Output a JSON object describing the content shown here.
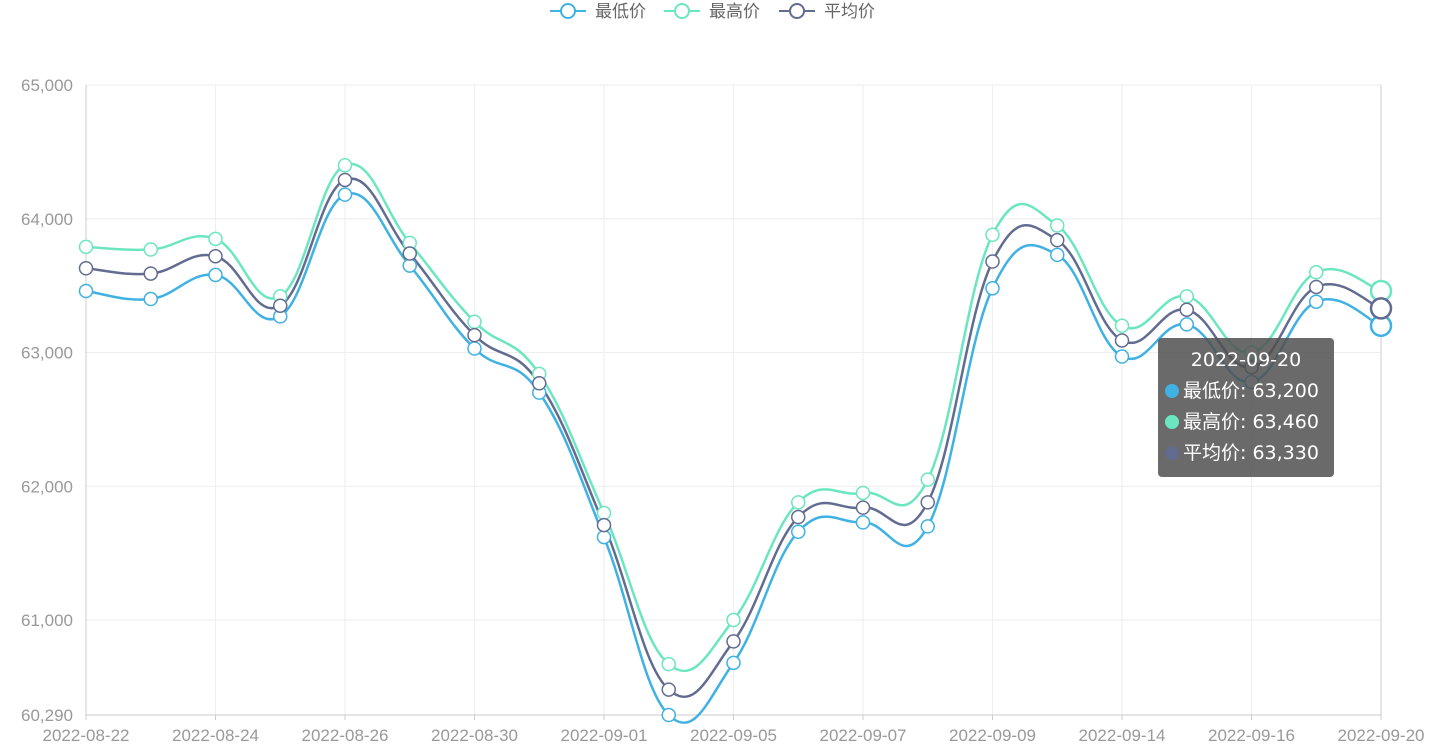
{
  "chart_data": {
    "type": "line",
    "smooth": true,
    "categories": [
      "2022-08-22",
      "2022-08-23",
      "2022-08-24",
      "2022-08-25",
      "2022-08-26",
      "2022-08-29",
      "2022-08-30",
      "2022-08-31",
      "2022-09-01",
      "2022-09-02",
      "2022-09-05",
      "2022-09-06",
      "2022-09-07",
      "2022-09-08",
      "2022-09-09",
      "2022-09-13",
      "2022-09-14",
      "2022-09-15",
      "2022-09-16",
      "2022-09-19",
      "2022-09-20"
    ],
    "x_tick_labels": [
      "2022-08-22",
      "2022-08-24",
      "2022-08-26",
      "2022-08-30",
      "2022-09-01",
      "2022-09-05",
      "2022-09-07",
      "2022-09-09",
      "2022-09-14",
      "2022-09-16",
      "2022-09-20"
    ],
    "y_tick_labels": [
      "60,290",
      "61,000",
      "62,000",
      "63,000",
      "64,000",
      "65,000"
    ],
    "ylim": [
      60290,
      65000
    ],
    "y_ticks": [
      60290,
      61000,
      62000,
      63000,
      64000,
      65000
    ],
    "grid": true,
    "legend_position": "top-center",
    "series": [
      {
        "name": "最低价",
        "color": "#3fb1e3",
        "values": [
          63460,
          63400,
          63580,
          63270,
          64180,
          63650,
          63030,
          62700,
          61620,
          60290,
          60680,
          61660,
          61730,
          61700,
          63480,
          63730,
          62970,
          63210,
          62780,
          63380,
          63200
        ]
      },
      {
        "name": "最高价",
        "color": "#6be6c1",
        "values": [
          63790,
          63770,
          63850,
          63420,
          64400,
          63820,
          63230,
          62840,
          61800,
          60670,
          61000,
          61880,
          61950,
          62050,
          63880,
          63950,
          63200,
          63420,
          63000,
          63600,
          63460
        ]
      },
      {
        "name": "平均价",
        "color": "#626c91",
        "values": [
          63630,
          63590,
          63720,
          63350,
          64290,
          63740,
          63130,
          62770,
          61710,
          60480,
          60840,
          61770,
          61840,
          61880,
          63680,
          63840,
          63090,
          63320,
          62890,
          63490,
          63330
        ]
      }
    ]
  },
  "tooltip": {
    "title": "2022-09-20",
    "rows": [
      {
        "text": "最低价: 63,200",
        "color": "#3fb1e3"
      },
      {
        "text": "最高价: 63,460",
        "color": "#6be6c1"
      },
      {
        "text": "平均价: 63,330",
        "color": "#626c91"
      }
    ]
  }
}
